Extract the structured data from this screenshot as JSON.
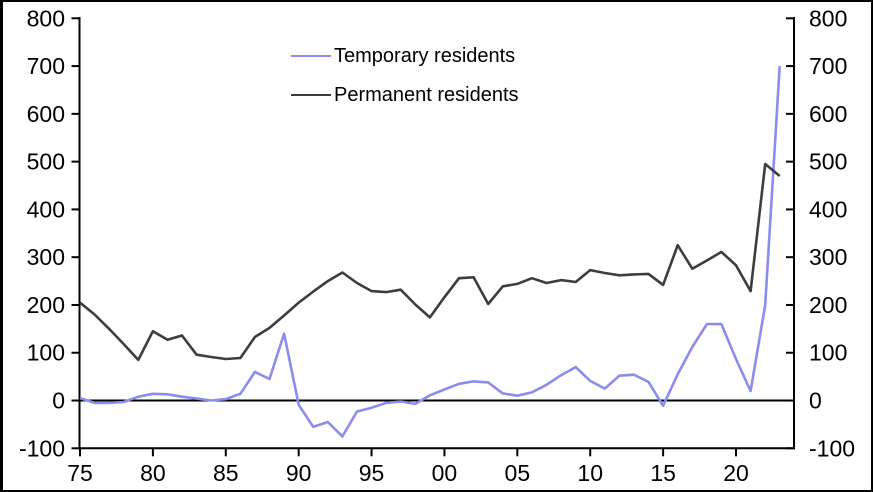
{
  "chart_data": {
    "type": "line",
    "title": "",
    "x_years": [
      1975,
      1976,
      1977,
      1978,
      1979,
      1980,
      1981,
      1982,
      1983,
      1984,
      1985,
      1986,
      1987,
      1988,
      1989,
      1990,
      1991,
      1992,
      1993,
      1994,
      1995,
      1996,
      1997,
      1998,
      1999,
      2000,
      2001,
      2002,
      2003,
      2004,
      2005,
      2006,
      2007,
      2008,
      2009,
      2010,
      2011,
      2012,
      2013,
      2014,
      2015,
      2016,
      2017,
      2018,
      2019,
      2020,
      2021,
      2022,
      2023
    ],
    "series": [
      {
        "name": "Temporary residents",
        "color": "#8c8cec",
        "values": [
          5,
          -5,
          -5,
          -3,
          8,
          14,
          13,
          8,
          4,
          0,
          3,
          14,
          60,
          45,
          140,
          -9,
          -55,
          -45,
          -75,
          -23,
          -15,
          -5,
          -2,
          -7,
          11,
          23,
          35,
          40,
          38,
          15,
          10,
          17,
          33,
          53,
          70,
          41,
          25,
          52,
          54,
          39,
          -11,
          55,
          112,
          160,
          160,
          87,
          20,
          200,
          700
        ]
      },
      {
        "name": "Permanent residents",
        "color": "#3d3d3d",
        "values": [
          205,
          180,
          150,
          118,
          85,
          145,
          127,
          136,
          96,
          91,
          87,
          89,
          133,
          152,
          178,
          205,
          228,
          250,
          268,
          246,
          229,
          227,
          232,
          201,
          174,
          216,
          256,
          258,
          202,
          239,
          244,
          256,
          246,
          252,
          248,
          273,
          267,
          262,
          264,
          265,
          242,
          325,
          276,
          293,
          311,
          283,
          229,
          495,
          470
        ]
      }
    ],
    "y_axis": {
      "min": -100,
      "max": 800,
      "tick_step": 100,
      "tick_values": [
        -100,
        0,
        100,
        200,
        300,
        400,
        500,
        600,
        700,
        800
      ],
      "tick_labels": [
        "-100",
        "0",
        "100",
        "200",
        "300",
        "400",
        "500",
        "600",
        "700",
        "800"
      ],
      "sides": "both"
    },
    "x_axis": {
      "tick_years": [
        1975,
        1980,
        1985,
        1990,
        1995,
        2000,
        2005,
        2010,
        2015,
        2020
      ],
      "tick_labels": [
        "75",
        "80",
        "85",
        "90",
        "95",
        "00",
        "05",
        "10",
        "15",
        "20"
      ]
    },
    "legend": [
      {
        "label": "Temporary residents",
        "color": "#8c8cec"
      },
      {
        "label": "Permanent residents",
        "color": "#3d3d3d"
      }
    ],
    "zero_line": true,
    "grid": false,
    "axis_color": "#000000"
  }
}
